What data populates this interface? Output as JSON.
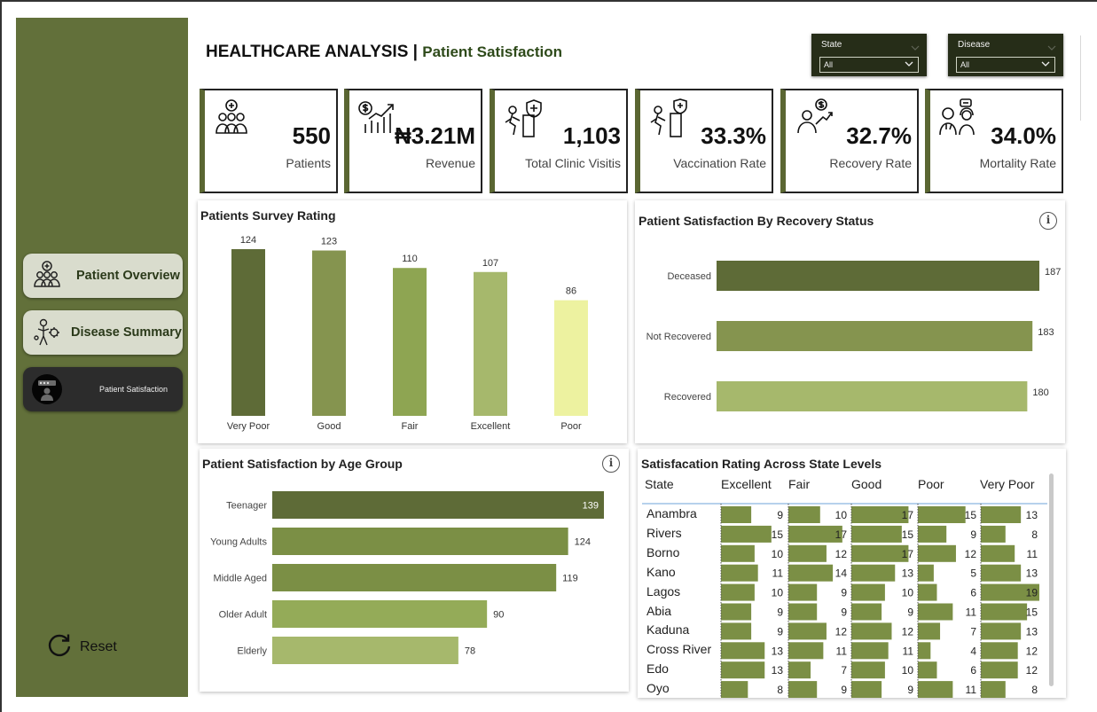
{
  "header": {
    "title": "HEALTHCARE ANALYSIS",
    "separator": "|",
    "subtitle": "Patient Satisfaction"
  },
  "filters": [
    {
      "label": "State",
      "value": "All"
    },
    {
      "label": "Disease",
      "value": "All"
    }
  ],
  "nav": {
    "items": [
      {
        "label": "Patient Overview",
        "icon": "patients-group-icon"
      },
      {
        "label": "Disease Summary",
        "icon": "virus-body-icon"
      },
      {
        "label": "Patient Satisfaction",
        "icon": "survey-person-icon",
        "active": true
      }
    ],
    "reset_label": "Reset"
  },
  "kpis": [
    {
      "value": "550",
      "label": "Patients",
      "icon": "patients-group-icon"
    },
    {
      "value": "₦3.21M",
      "label": "Revenue",
      "icon": "revenue-chart-icon"
    },
    {
      "value": "1,103",
      "label": "Total Clinic Visitis",
      "icon": "clinic-visit-icon"
    },
    {
      "value": "33.3%",
      "label": "Vaccination Rate",
      "icon": "vaccination-icon"
    },
    {
      "value": "32.7%",
      "label": "Recovery Rate",
      "icon": "recovery-icon"
    },
    {
      "value": "34.0%",
      "label": "Mortality Rate",
      "icon": "doctor-patient-icon"
    }
  ],
  "colors": {
    "sidebar": "#62703a",
    "dark_olive": "#5e6b37",
    "olive": "#7b8f45",
    "mid_green": "#8ea552",
    "light_green": "#a6b86c",
    "pale_yellow": "#edf2a0"
  },
  "chart_data": [
    {
      "type": "bar",
      "title": "Patients Survey Rating",
      "categories": [
        "Very Poor",
        "Good",
        "Fair",
        "Excellent",
        "Poor"
      ],
      "values": [
        124,
        123,
        110,
        107,
        86
      ],
      "colors": [
        "#5e6b37",
        "#85944f",
        "#8ea552",
        "#a6b86c",
        "#edf2a0"
      ],
      "ylim": [
        0,
        130
      ]
    },
    {
      "type": "bar",
      "orientation": "horizontal",
      "title": "Patient Satisfaction By Recovery Status",
      "categories": [
        "Deceased",
        "Not Recovered",
        "Recovered"
      ],
      "values": [
        187,
        183,
        180
      ],
      "colors": [
        "#5e6b37",
        "#85944f",
        "#a6b86c"
      ]
    },
    {
      "type": "bar",
      "orientation": "horizontal",
      "title": "Patient Satisfaction by Age Group",
      "categories": [
        "Teenager",
        "Young Adults",
        "Middle Aged",
        "Older Adult",
        "Elderly"
      ],
      "values": [
        139,
        124,
        119,
        90,
        78
      ],
      "colors": [
        "#5e6b37",
        "#7b8f45",
        "#7b8f45",
        "#94ab58",
        "#a6b86c"
      ]
    },
    {
      "type": "table",
      "title": "Satisfacation Rating Across State Levels",
      "columns": [
        "State",
        "Excellent",
        "Fair",
        "Good",
        "Poor",
        "Very Poor"
      ],
      "rows": [
        {
          "state": "Anambra",
          "values": [
            9,
            10,
            17,
            15,
            13
          ]
        },
        {
          "state": "Rivers",
          "values": [
            15,
            17,
            15,
            9,
            8
          ]
        },
        {
          "state": "Borno",
          "values": [
            10,
            12,
            17,
            12,
            11
          ]
        },
        {
          "state": "Kano",
          "values": [
            11,
            14,
            13,
            5,
            13
          ]
        },
        {
          "state": "Lagos",
          "values": [
            10,
            9,
            10,
            6,
            19
          ]
        },
        {
          "state": "Abia",
          "values": [
            9,
            9,
            9,
            11,
            15
          ]
        },
        {
          "state": "Kaduna",
          "values": [
            9,
            12,
            12,
            7,
            13
          ]
        },
        {
          "state": "Cross River",
          "values": [
            13,
            11,
            11,
            4,
            12
          ]
        },
        {
          "state": "Edo",
          "values": [
            13,
            7,
            10,
            6,
            12
          ]
        },
        {
          "state": "Oyo",
          "values": [
            8,
            9,
            9,
            11,
            8
          ]
        }
      ],
      "bar_max": 19,
      "bar_color": "#7b8f45"
    }
  ]
}
